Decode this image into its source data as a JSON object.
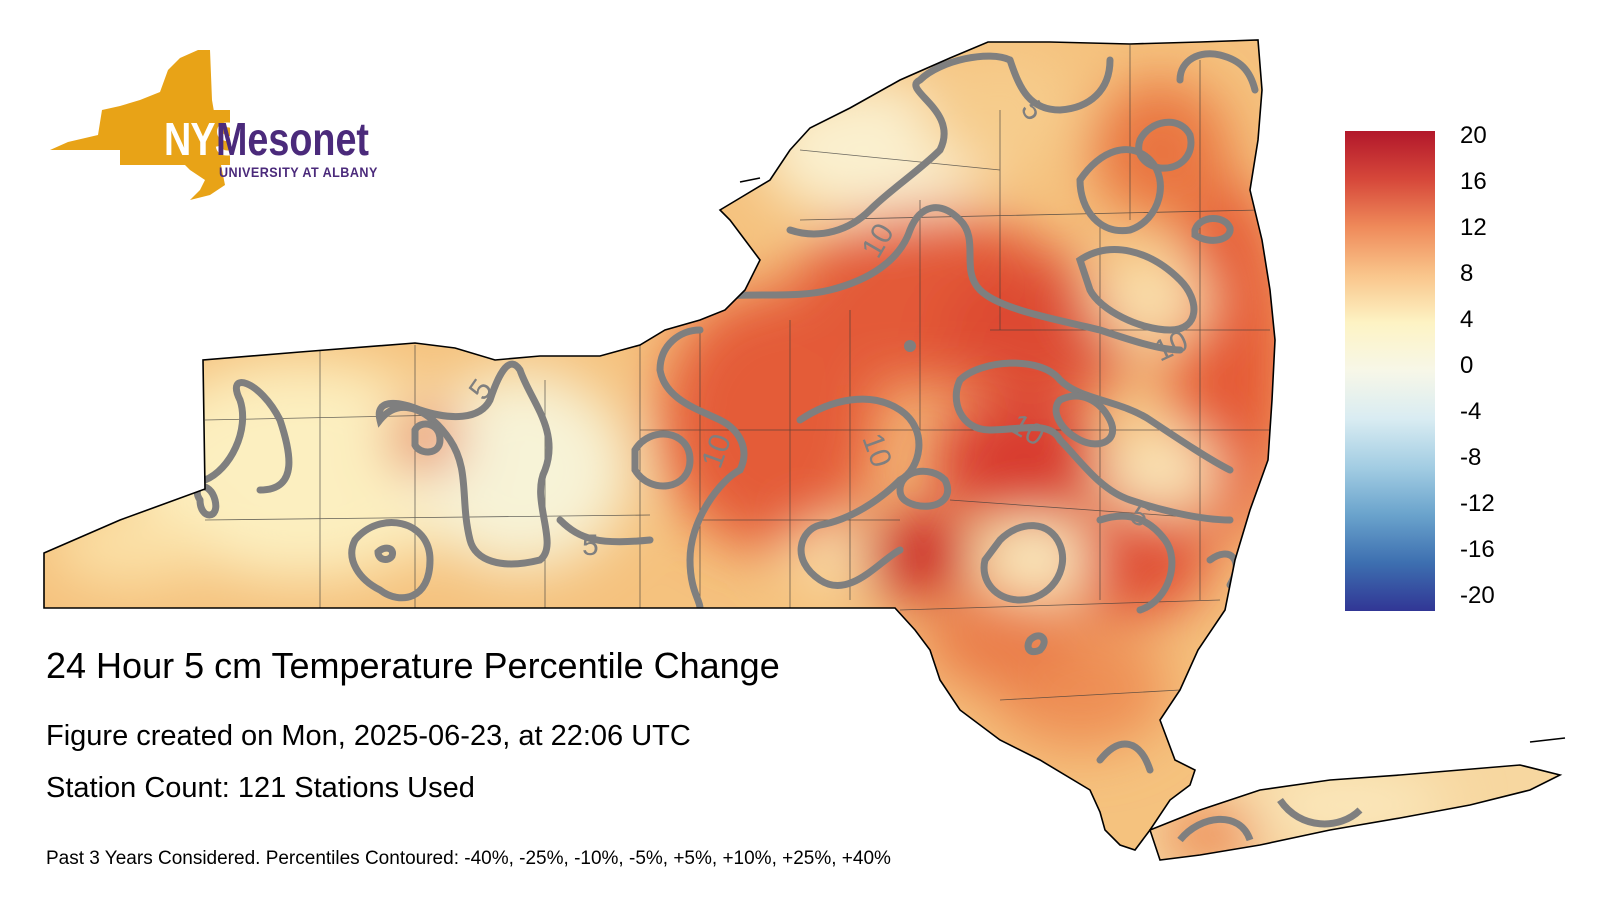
{
  "logo": {
    "primary": "NYS",
    "secondary": "Mesonet",
    "subtitle": "UNIVERSITY AT ALBANY",
    "colors": {
      "gold": "#e8a317",
      "purple": "#4b2a7b"
    }
  },
  "map": {
    "region": "New York State",
    "contour_interval_labels": [
      "5",
      "10"
    ],
    "contour_color": "#808080",
    "ocean_background": "#ffffff"
  },
  "colorbar": {
    "ticks": [
      "20",
      "16",
      "12",
      "8",
      "4",
      "0",
      "-4",
      "-8",
      "-12",
      "-16",
      "-20"
    ],
    "range": [
      -20,
      20
    ],
    "colors": [
      "#b2182b",
      "#d6473a",
      "#ef8a5a",
      "#f9c58b",
      "#fdf3c4",
      "#f7f7e8",
      "#d9ecf2",
      "#a3cde3",
      "#6aa3cc",
      "#3d6fb0",
      "#313695"
    ]
  },
  "text": {
    "title": "24 Hour 5 cm Temperature Percentile Change",
    "created": "Figure created on Mon, 2025-06-23, at 22:06 UTC",
    "stations": "Station Count: 121 Stations Used",
    "footnote": "Past 3 Years Considered. Percentiles Contoured: -40%, -25%, -10%, -5%, +5%, +10%, +25%, +40%"
  }
}
